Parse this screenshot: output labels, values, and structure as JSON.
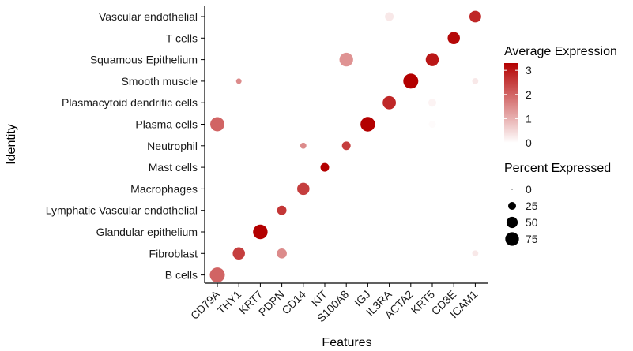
{
  "chart_data": {
    "type": "dotplot",
    "xlabel": "Features",
    "ylabel": "Identity",
    "features": [
      "CD79A",
      "THY1",
      "KRT7",
      "PDPN",
      "CD14",
      "KIT",
      "S100A8",
      "IGJ",
      "IL3RA",
      "ACTA2",
      "KRT5",
      "CD3E",
      "ICAM1"
    ],
    "identities": [
      "Vascular endothelial",
      "T cells",
      "Squamous Epithelium",
      "Smooth muscle",
      "Plasmacytoid dendritic cells",
      "Plasma cells",
      "Neutrophil",
      "Mast cells",
      "Macrophages",
      "Lymphatic Vascular endothelial",
      "Glandular epithelium",
      "Fibroblast",
      "B cells"
    ],
    "points": [
      {
        "identity": "Vascular endothelial",
        "feature": "IL3RA",
        "avg_exp": 0.3,
        "pct_exp": 30
      },
      {
        "identity": "Vascular endothelial",
        "feature": "ICAM1",
        "avg_exp": 2.8,
        "pct_exp": 55
      },
      {
        "identity": "T cells",
        "feature": "CD3E",
        "avg_exp": 3.2,
        "pct_exp": 60
      },
      {
        "identity": "Squamous Epithelium",
        "feature": "S100A8",
        "avg_exp": 1.4,
        "pct_exp": 75
      },
      {
        "identity": "Squamous Epithelium",
        "feature": "KRT5",
        "avg_exp": 3.0,
        "pct_exp": 68
      },
      {
        "identity": "Smooth muscle",
        "feature": "THY1",
        "avg_exp": 1.5,
        "pct_exp": 12
      },
      {
        "identity": "Smooth muscle",
        "feature": "ACTA2",
        "avg_exp": 3.3,
        "pct_exp": 90
      },
      {
        "identity": "Smooth muscle",
        "feature": "ICAM1",
        "avg_exp": 0.3,
        "pct_exp": 15
      },
      {
        "identity": "Plasmacytoid dendritic cells",
        "feature": "IL3RA",
        "avg_exp": 2.8,
        "pct_exp": 70
      },
      {
        "identity": "Plasmacytoid dendritic cells",
        "feature": "KRT5",
        "avg_exp": 0.15,
        "pct_exp": 25
      },
      {
        "identity": "Plasma cells",
        "feature": "CD79A",
        "avg_exp": 2.0,
        "pct_exp": 80
      },
      {
        "identity": "Plasma cells",
        "feature": "IGJ",
        "avg_exp": 3.3,
        "pct_exp": 85
      },
      {
        "identity": "Plasma cells",
        "feature": "KRT5",
        "avg_exp": 0.05,
        "pct_exp": 20
      },
      {
        "identity": "Neutrophil",
        "feature": "CD14",
        "avg_exp": 1.5,
        "pct_exp": 15
      },
      {
        "identity": "Neutrophil",
        "feature": "S100A8",
        "avg_exp": 2.5,
        "pct_exp": 30
      },
      {
        "identity": "Mast cells",
        "feature": "KIT",
        "avg_exp": 3.3,
        "pct_exp": 30
      },
      {
        "identity": "Macrophages",
        "feature": "CD14",
        "avg_exp": 2.5,
        "pct_exp": 60
      },
      {
        "identity": "Lymphatic Vascular endothelial",
        "feature": "PDPN",
        "avg_exp": 2.6,
        "pct_exp": 35
      },
      {
        "identity": "Glandular epithelium",
        "feature": "KRT7",
        "avg_exp": 3.3,
        "pct_exp": 85
      },
      {
        "identity": "Fibroblast",
        "feature": "THY1",
        "avg_exp": 2.5,
        "pct_exp": 60
      },
      {
        "identity": "Fibroblast",
        "feature": "PDPN",
        "avg_exp": 1.5,
        "pct_exp": 40
      },
      {
        "identity": "Fibroblast",
        "feature": "ICAM1",
        "avg_exp": 0.3,
        "pct_exp": 15
      },
      {
        "identity": "B cells",
        "feature": "CD79A",
        "avg_exp": 2.0,
        "pct_exp": 90
      }
    ],
    "color_scale": {
      "low": "#ffffff",
      "high": "#b30000",
      "min": 0,
      "max": 3.3
    },
    "size_scale": {
      "max_pct": 90
    },
    "legend_color": {
      "title": "Average Expression",
      "ticks": [
        3,
        2,
        1,
        0
      ]
    },
    "legend_size": {
      "title": "Percent Expressed",
      "ticks": [
        0,
        25,
        50,
        75
      ]
    },
    "legend_placement": "right",
    "grid": false
  }
}
